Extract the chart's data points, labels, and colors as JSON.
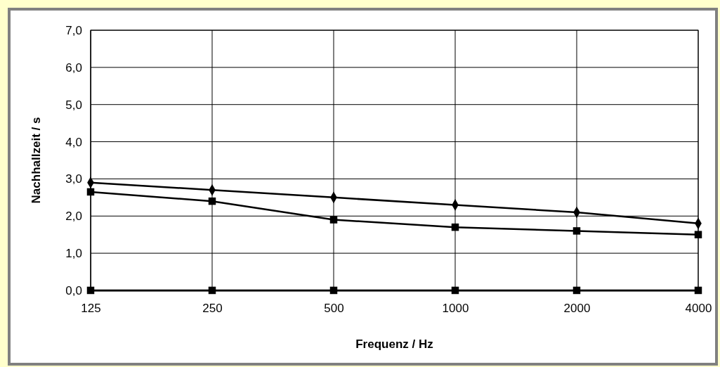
{
  "chart_data": {
    "type": "line",
    "xlabel": "Frequenz / Hz",
    "ylabel": "Nachhallzeit / s",
    "categories": [
      "125",
      "250",
      "500",
      "1000",
      "2000",
      "4000"
    ],
    "series": [
      {
        "color": "#000000",
        "marker": "diamond",
        "values": [
          2.9,
          2.7,
          2.5,
          2.3,
          2.1,
          1.8
        ]
      },
      {
        "color": "#000000",
        "marker": "square",
        "values": [
          2.65,
          2.4,
          1.9,
          1.7,
          1.6,
          1.5
        ]
      },
      {
        "color": "#000000",
        "marker": "square",
        "values": [
          0,
          0,
          0,
          0,
          0,
          0
        ]
      }
    ],
    "ylim": [
      0,
      7
    ],
    "yticks": [
      {
        "value": 0,
        "label": "0,0"
      },
      {
        "value": 1,
        "label": "1,0"
      },
      {
        "value": 2,
        "label": "2,0"
      },
      {
        "value": 3,
        "label": "3,0"
      },
      {
        "value": 4,
        "label": "4,0"
      },
      {
        "value": 5,
        "label": "5,0"
      },
      {
        "value": 6,
        "label": "6,0"
      },
      {
        "value": 7,
        "label": "7,0"
      }
    ],
    "grid": true,
    "line_style": "solid"
  }
}
